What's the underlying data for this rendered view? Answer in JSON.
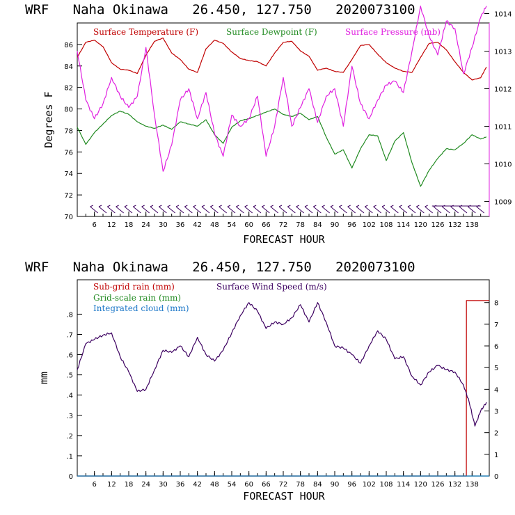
{
  "chart_data": [
    {
      "type": "line",
      "title": "WRF   Naha Okinawa   26.450, 127.750   2020073100",
      "xlabel": "FORECAST HOUR",
      "ylabel": "Degrees F",
      "xlim": [
        0,
        144
      ],
      "x_ticks": [
        "6",
        "12",
        "18",
        "24",
        "30",
        "36",
        "42",
        "48",
        "54",
        "60",
        "66",
        "72",
        "78",
        "84",
        "90",
        "96",
        "102",
        "108",
        "114",
        "120",
        "126",
        "132",
        "138"
      ],
      "ylim": [
        70,
        88
      ],
      "y_ticks": [
        "70",
        "72",
        "74",
        "76",
        "78",
        "80",
        "82",
        "84",
        "86"
      ],
      "y2lim": [
        1008.6,
        1013.75
      ],
      "y2_ticks": [
        "1009",
        "1010",
        "1011",
        "1012",
        "1013",
        "1014"
      ],
      "legend": [
        "Surface Temperature (F)",
        "Surface Dewpoint (F)",
        "Surface Pressure (mb)"
      ],
      "colors": {
        "temperature": "#c00000",
        "dewpoint": "#228b22",
        "pressure": "#e020e0",
        "barbs": "#3c0060"
      },
      "series": [
        {
          "name": "Surface Temperature (F)",
          "axis": "left",
          "x": [
            0,
            3,
            6,
            9,
            12,
            15,
            18,
            21,
            24,
            27,
            30,
            33,
            36,
            39,
            42,
            45,
            48,
            51,
            54,
            57,
            60,
            63,
            66,
            69,
            72,
            75,
            78,
            81,
            84,
            87,
            90,
            93,
            96,
            99,
            102,
            105,
            108,
            111,
            114,
            117,
            120,
            123,
            126,
            129,
            132,
            135,
            138,
            141,
            143
          ],
          "values": [
            84.8,
            86.2,
            86.4,
            85.8,
            84.3,
            83.7,
            83.6,
            83.3,
            85.0,
            86.3,
            86.6,
            85.2,
            84.6,
            83.7,
            83.4,
            85.6,
            86.4,
            86.1,
            85.3,
            84.7,
            84.5,
            84.4,
            84.0,
            85.2,
            86.2,
            86.3,
            85.4,
            84.9,
            83.6,
            83.8,
            83.5,
            83.4,
            84.6,
            85.9,
            86.0,
            85.1,
            84.3,
            83.8,
            83.5,
            83.4,
            84.8,
            86.1,
            86.2,
            85.5,
            84.4,
            83.4,
            82.7,
            82.9,
            83.9
          ]
        },
        {
          "name": "Surface Dewpoint (F)",
          "axis": "left",
          "x": [
            0,
            3,
            6,
            9,
            12,
            15,
            18,
            21,
            24,
            27,
            30,
            33,
            36,
            39,
            42,
            45,
            48,
            51,
            54,
            57,
            60,
            63,
            66,
            69,
            72,
            75,
            78,
            81,
            84,
            87,
            90,
            93,
            96,
            99,
            102,
            105,
            108,
            111,
            114,
            117,
            120,
            123,
            126,
            129,
            132,
            135,
            138,
            141,
            143
          ],
          "values": [
            78.3,
            76.7,
            77.8,
            78.6,
            79.4,
            79.8,
            79.5,
            78.8,
            78.4,
            78.2,
            78.5,
            78.1,
            78.8,
            78.6,
            78.4,
            79.0,
            77.6,
            76.8,
            78.3,
            78.9,
            79.1,
            79.4,
            79.7,
            80.0,
            79.5,
            79.3,
            79.6,
            79.0,
            79.3,
            77.4,
            75.8,
            76.2,
            74.5,
            76.3,
            77.6,
            77.5,
            75.2,
            77.0,
            77.8,
            75.0,
            72.8,
            74.3,
            75.4,
            76.3,
            76.2,
            76.8,
            77.6,
            77.2,
            77.4
          ]
        },
        {
          "name": "Surface Pressure (mb)",
          "axis": "right",
          "x": [
            0,
            3,
            6,
            9,
            12,
            15,
            18,
            21,
            24,
            27,
            30,
            33,
            36,
            39,
            42,
            45,
            48,
            51,
            54,
            57,
            60,
            63,
            66,
            69,
            72,
            75,
            78,
            81,
            84,
            87,
            90,
            93,
            96,
            99,
            102,
            105,
            108,
            111,
            114,
            117,
            120,
            123,
            126,
            129,
            132,
            135,
            138,
            141,
            143
          ],
          "values": [
            1013.0,
            1011.7,
            1011.2,
            1011.6,
            1012.3,
            1011.8,
            1011.5,
            1011.8,
            1013.1,
            1011.3,
            1009.8,
            1010.5,
            1011.7,
            1012.0,
            1011.2,
            1011.9,
            1010.8,
            1010.2,
            1011.3,
            1011.0,
            1011.2,
            1011.8,
            1010.2,
            1011.0,
            1012.3,
            1011.0,
            1011.5,
            1012.0,
            1011.1,
            1011.8,
            1012.0,
            1011.0,
            1012.6,
            1011.6,
            1011.2,
            1011.7,
            1012.1,
            1012.2,
            1011.9,
            1013.0,
            1014.2,
            1013.4,
            1012.9,
            1013.8,
            1013.6,
            1012.4,
            1013.1,
            1013.9,
            1014.2
          ]
        }
      ],
      "wind_barbs": true
    },
    {
      "type": "line",
      "title": "WRF   Naha Okinawa   26.450, 127.750   2020073100",
      "xlabel": "FORECAST HOUR",
      "ylabel": "mm",
      "xlim": [
        0,
        144
      ],
      "x_ticks": [
        "6",
        "12",
        "18",
        "24",
        "30",
        "36",
        "42",
        "48",
        "54",
        "60",
        "66",
        "72",
        "78",
        "84",
        "90",
        "96",
        "102",
        "108",
        "114",
        "120",
        "126",
        "132",
        "138"
      ],
      "ylim": [
        0,
        0.97
      ],
      "y_ticks": [
        "0",
        ".1",
        ".2",
        ".3",
        ".4",
        ".5",
        ".6",
        ".7",
        ".8"
      ],
      "y2lim": [
        0,
        9.05
      ],
      "y2_ticks": [
        "0",
        "1",
        "2",
        "3",
        "4",
        "5",
        "6",
        "7",
        "8"
      ],
      "legend": [
        "Sub-grid rain (mm)",
        "Grid-scale rain (mm)",
        "Integrated cloud (mm)",
        "Surface Wind Speed (m/s)"
      ],
      "colors": {
        "subgrid": "#c00000",
        "gridscale": "#228b22",
        "cloud": "#1e78c8",
        "wind": "#3c0060"
      },
      "series": [
        {
          "name": "Sub-grid rain (mm)",
          "axis": "left",
          "x": [
            0,
            136,
            136.01,
            144
          ],
          "values": [
            0,
            0,
            0.867,
            0.867
          ]
        },
        {
          "name": "Grid-scale rain (mm)",
          "axis": "left",
          "x": [
            0,
            144
          ],
          "values": [
            0,
            0
          ]
        },
        {
          "name": "Integrated cloud (mm)",
          "axis": "left",
          "x": [
            0,
            144
          ],
          "values": [
            0,
            0
          ]
        },
        {
          "name": "Surface Wind Speed (m/s)",
          "axis": "right",
          "x": [
            0,
            3,
            6,
            9,
            12,
            15,
            18,
            21,
            24,
            27,
            30,
            33,
            36,
            39,
            42,
            45,
            48,
            51,
            54,
            57,
            60,
            63,
            66,
            69,
            72,
            75,
            78,
            81,
            84,
            87,
            90,
            93,
            96,
            99,
            102,
            105,
            108,
            111,
            114,
            117,
            120,
            123,
            126,
            129,
            132,
            135,
            137,
            139,
            141,
            143
          ],
          "values": [
            4.9,
            6.1,
            6.3,
            6.5,
            6.6,
            5.5,
            4.8,
            3.9,
            4.0,
            4.9,
            5.8,
            5.7,
            6.0,
            5.5,
            6.4,
            5.6,
            5.3,
            5.8,
            6.6,
            7.4,
            8.0,
            7.6,
            6.8,
            7.1,
            7.0,
            7.3,
            7.9,
            7.1,
            8.0,
            7.1,
            6.0,
            5.9,
            5.6,
            5.2,
            6.0,
            6.7,
            6.3,
            5.4,
            5.5,
            4.6,
            4.2,
            4.8,
            5.1,
            4.9,
            4.8,
            4.2,
            3.4,
            2.3,
            3.0,
            3.4
          ]
        }
      ]
    }
  ]
}
